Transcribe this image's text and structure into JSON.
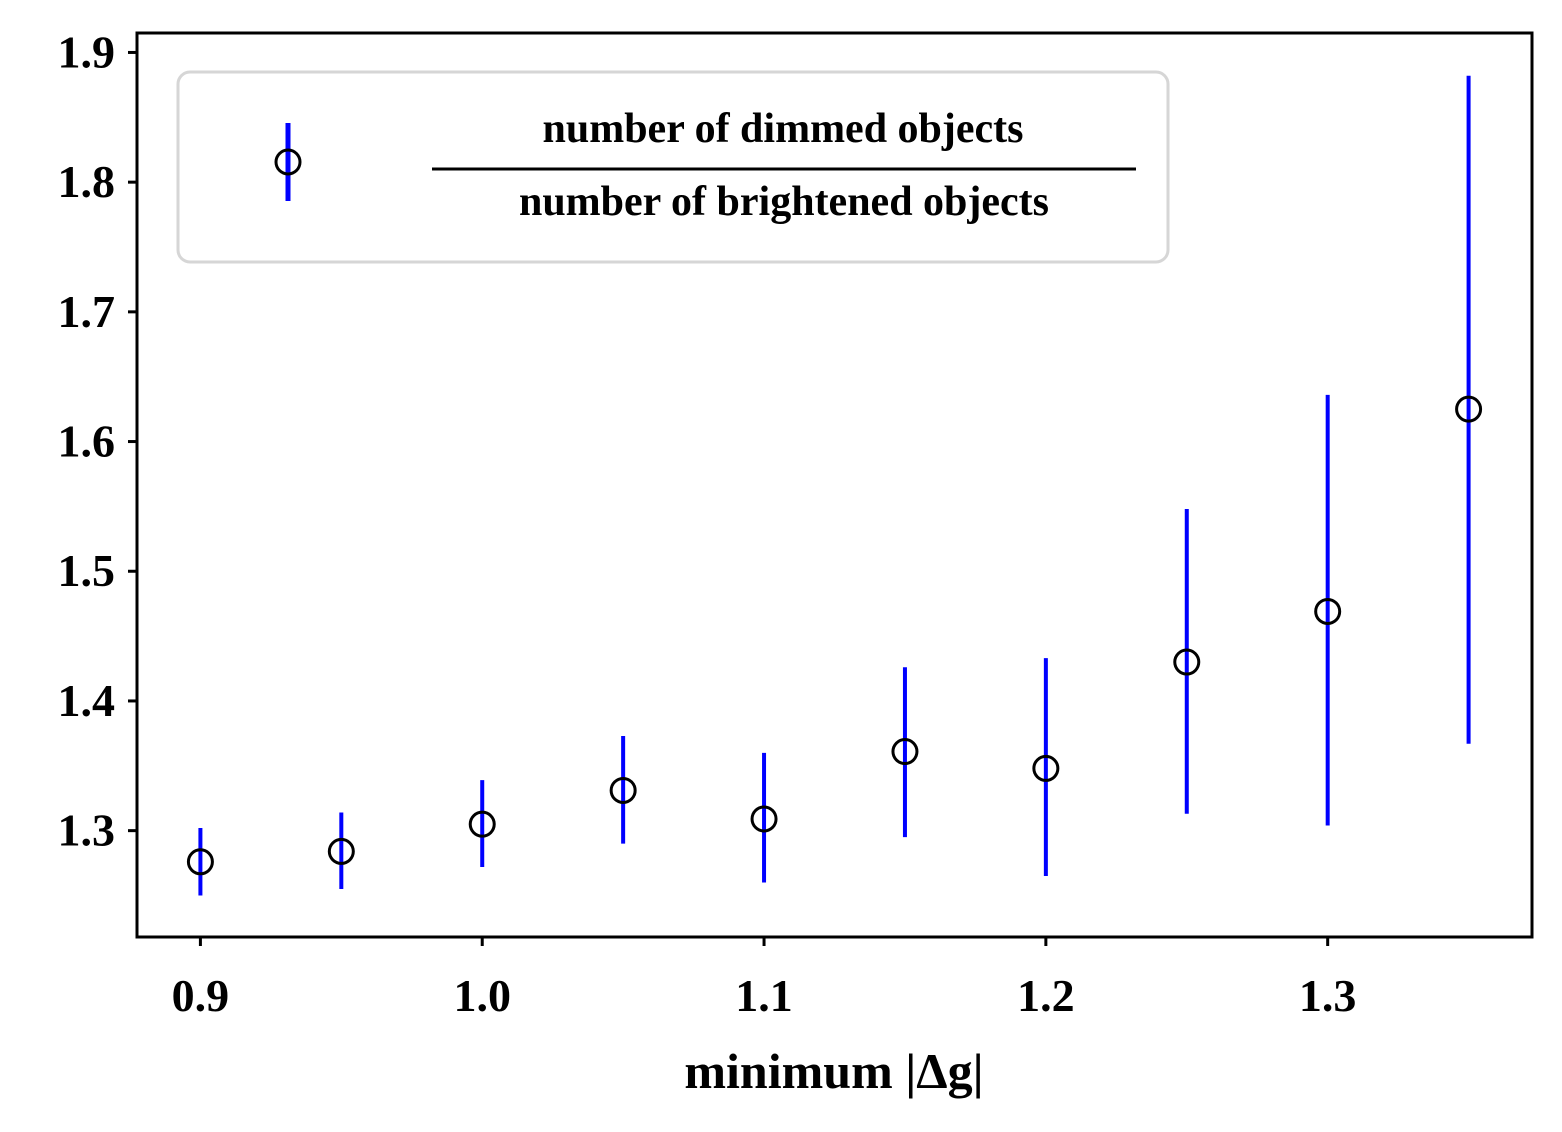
{
  "chart_data": {
    "type": "scatter",
    "title": "",
    "xlabel": "minimum |Δg|",
    "ylabel": "",
    "xlim": [
      0.8775,
      1.3725
    ],
    "ylim": [
      1.218,
      1.915
    ],
    "grid": false,
    "x_ticks": [
      "0.9",
      "1.0",
      "1.1",
      "1.2",
      "1.3"
    ],
    "y_ticks": [
      "1.3",
      "1.4",
      "1.5",
      "1.6",
      "1.7",
      "1.8",
      "1.9"
    ],
    "legend": {
      "placement": "top-left",
      "numerator": "number of dimmed objects",
      "denominator": "number of brightened objects"
    },
    "series": [
      {
        "name": "number of dimmed objects / number of brightened objects",
        "marker": "open-circle",
        "marker_color": "#000000",
        "errorbar_color": "#0000ff",
        "x": [
          0.9,
          0.95,
          1.0,
          1.05,
          1.1,
          1.15,
          1.2,
          1.25,
          1.3,
          1.35
        ],
        "y": [
          1.276,
          1.284,
          1.305,
          1.331,
          1.309,
          1.361,
          1.348,
          1.43,
          1.469,
          1.625
        ],
        "y_err_low": [
          1.25,
          1.255,
          1.272,
          1.29,
          1.26,
          1.295,
          1.265,
          1.313,
          1.304,
          1.367
        ],
        "y_err_high": [
          1.302,
          1.314,
          1.339,
          1.373,
          1.36,
          1.426,
          1.433,
          1.548,
          1.636,
          1.882
        ]
      }
    ]
  }
}
